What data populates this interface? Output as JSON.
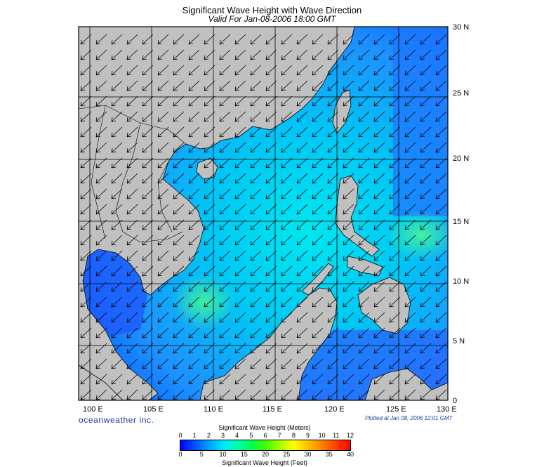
{
  "title": "Significant Wave Height with Wave Direction",
  "subtitle": "Valid For Jan-08-2006 18:00 GMT",
  "brand": "oceanweather inc.",
  "plotted": "Plotted at Jan 08, 2006 12:01 GMT",
  "map": {
    "lon_range": [
      100,
      130
    ],
    "lat_range": [
      0,
      30
    ],
    "lon_labels": [
      "100 E",
      "105 E",
      "110 E",
      "115 E",
      "120 E",
      "125 E",
      "130 E"
    ],
    "lat_labels": [
      "0",
      "5 N",
      "10 N",
      "15 N",
      "20 N",
      "25 N",
      "30 N"
    ],
    "grid": true,
    "land_color": "#c0c0c0",
    "wave_direction": "from northeast",
    "arrow_icon": "wave-direction-arrow-icon"
  },
  "colorbar": {
    "meters_title": "Significant Wave Height (Meters)",
    "feet_title": "Significant Wave Height (Feet)",
    "meters_ticks": [
      "0",
      "1",
      "2",
      "3",
      "4",
      "5",
      "6",
      "7",
      "8",
      "9",
      "10",
      "11",
      "12"
    ],
    "feet_ticks": [
      "0",
      "5",
      "10",
      "15",
      "20",
      "25",
      "30",
      "35",
      "40"
    ],
    "colors": [
      "#0000ff",
      "#0050ff",
      "#00a0ff",
      "#00e5ff",
      "#00ffb0",
      "#00ff50",
      "#40ff00",
      "#a0ff00",
      "#ffff00",
      "#ffc000",
      "#ff8000",
      "#ff4000",
      "#ff0000"
    ]
  }
}
